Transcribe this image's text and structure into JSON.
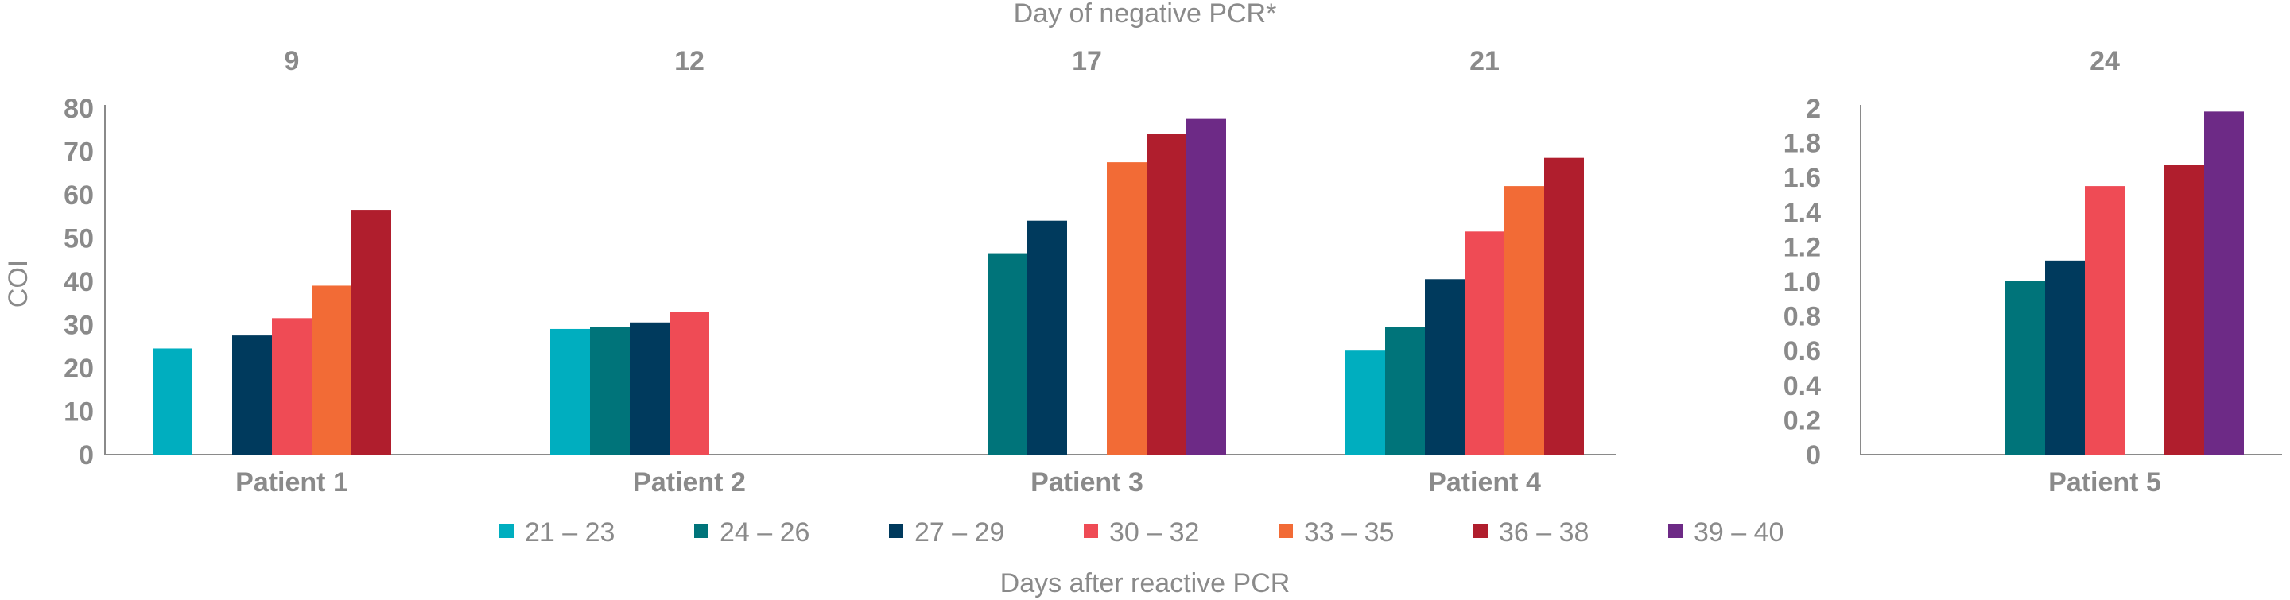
{
  "chart_data": {
    "type": "bar",
    "title": "Day of negative PCR*",
    "xlabel": "Days after reactive PCR",
    "ylabel": "COI",
    "legend_position": "bottom",
    "grid": false,
    "legend": [
      {
        "label": "21 – 23",
        "color": "#00aebf"
      },
      {
        "label": "24 – 26",
        "color": "#00747a"
      },
      {
        "label": "27 – 29",
        "color": "#003a5d"
      },
      {
        "label": "30 – 32",
        "color": "#ef4b55"
      },
      {
        "label": "33 – 35",
        "color": "#f26b36"
      },
      {
        "label": "36 – 38",
        "color": "#b01e2d"
      },
      {
        "label": "39 – 40",
        "color": "#6d2a86"
      }
    ],
    "panels": [
      {
        "ylim": [
          0,
          80
        ],
        "yticks": [
          "80",
          "70",
          "60",
          "50",
          "40",
          "30",
          "20",
          "10",
          "0"
        ],
        "groups": [
          {
            "category": "Patient 1",
            "day_negative_pcr": "9",
            "values": [
              24.5,
              null,
              27.5,
              31.5,
              39,
              56.5,
              null
            ]
          },
          {
            "category": "Patient 2",
            "day_negative_pcr": "12",
            "values": [
              29,
              29.5,
              30.5,
              33,
              null,
              null,
              null
            ]
          },
          {
            "category": "Patient 3",
            "day_negative_pcr": "17",
            "values": [
              null,
              46.5,
              54,
              null,
              67.5,
              74,
              77.5
            ]
          },
          {
            "category": "Patient 4",
            "day_negative_pcr": "21",
            "values": [
              24,
              29.5,
              40.5,
              51.5,
              62,
              68.5,
              null
            ]
          }
        ]
      },
      {
        "ylim": [
          0,
          2
        ],
        "yticks": [
          "2",
          "1.8",
          "1.6",
          "1.4",
          "1.2",
          "1.0",
          "0.8",
          "0.6",
          "0.4",
          "0.2",
          "0"
        ],
        "groups": [
          {
            "category": "Patient 5",
            "day_negative_pcr": "24",
            "values": [
              null,
              1.0,
              1.12,
              1.55,
              null,
              1.67,
              1.98
            ]
          }
        ]
      }
    ]
  }
}
